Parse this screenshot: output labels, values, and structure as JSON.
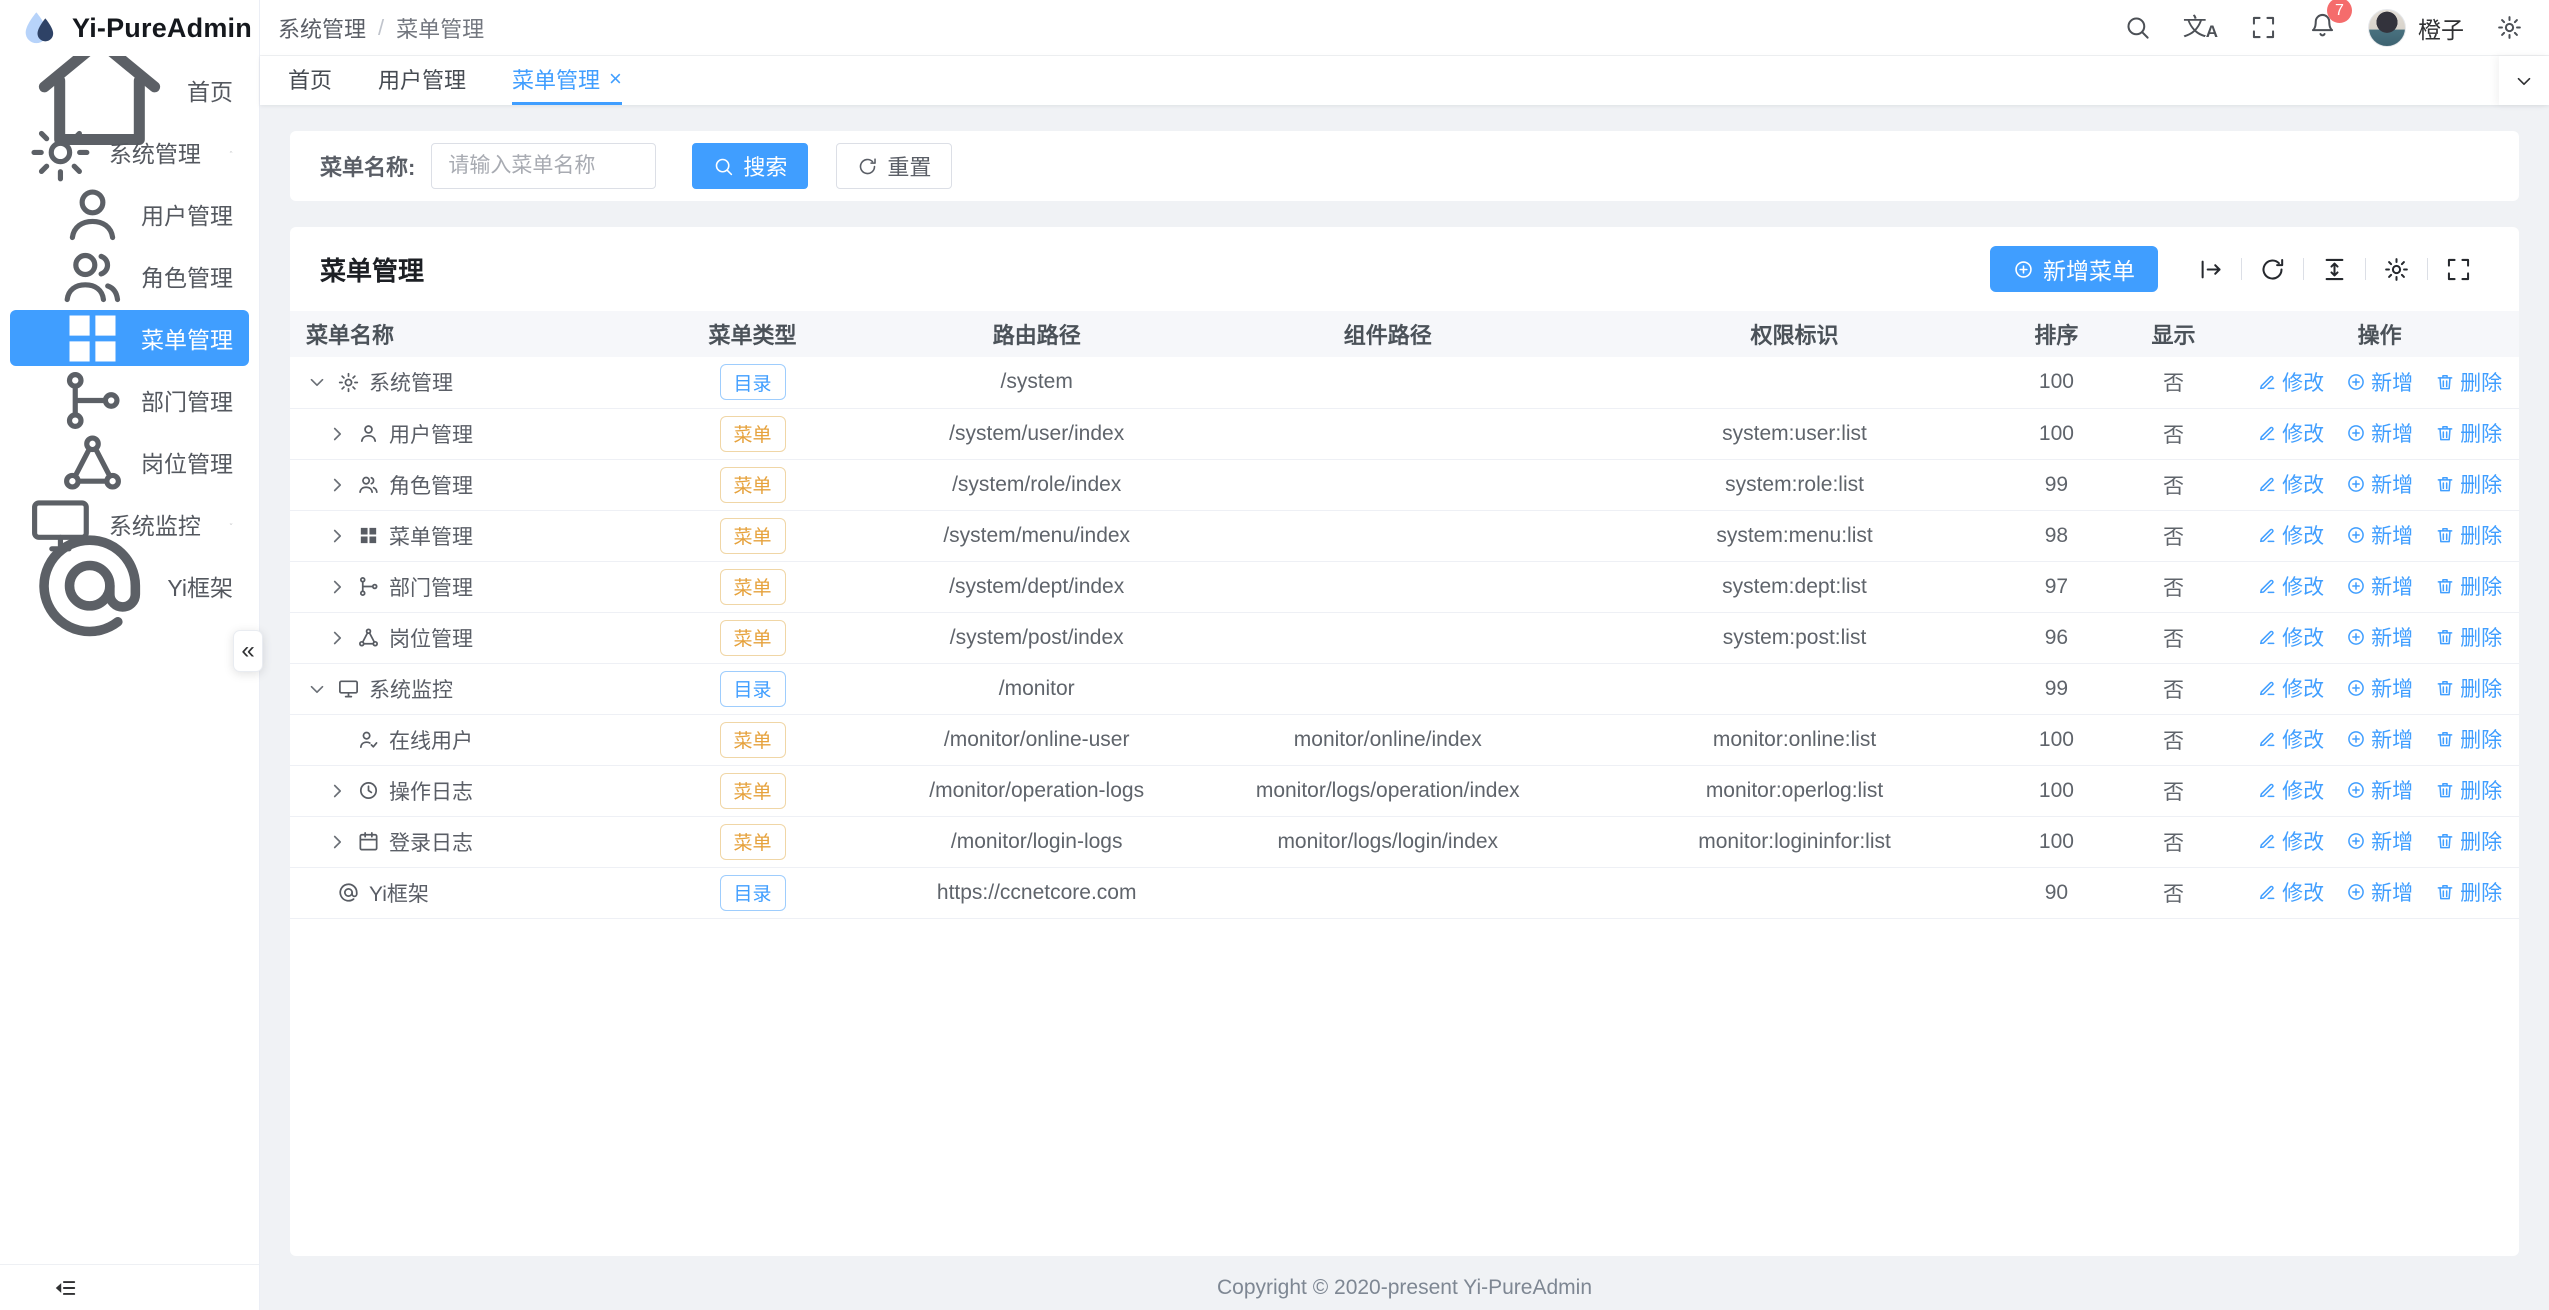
{
  "app": {
    "title": "Yi-PureAdmin"
  },
  "navbar": {
    "breadcrumb": [
      "系统管理",
      "菜单管理"
    ],
    "separator": "/",
    "icons": [
      "search",
      "translate",
      "fullscreen",
      "bell",
      "settings"
    ],
    "badge_count": "7",
    "username": "橙子"
  },
  "sidebar": {
    "collapse_glyph": "«",
    "items": [
      {
        "id": "home",
        "label": "首页",
        "icon": "home"
      },
      {
        "id": "system-management",
        "label": "系统管理",
        "icon": "gear",
        "arrow": "u"
      },
      {
        "id": "user-management",
        "label": "用户管理",
        "icon": "user",
        "child": true
      },
      {
        "id": "role-management",
        "label": "角色管理",
        "icon": "users",
        "child": true
      },
      {
        "id": "menu-management",
        "label": "菜单管理",
        "icon": "grid",
        "child": true,
        "active": true
      },
      {
        "id": "dept-management",
        "label": "部门管理",
        "icon": "dept",
        "child": true
      },
      {
        "id": "post-management",
        "label": "岗位管理",
        "icon": "share",
        "child": true
      },
      {
        "id": "system-monitor",
        "label": "系统监控",
        "icon": "monitor",
        "arrow": "d"
      },
      {
        "id": "yi-framework",
        "label": "Yi框架",
        "icon": "at"
      }
    ]
  },
  "tabs": {
    "items": [
      {
        "id": "home",
        "label": "首页"
      },
      {
        "id": "user-management",
        "label": "用户管理"
      },
      {
        "id": "menu-management",
        "label": "菜单管理",
        "active": true,
        "closable": true
      }
    ],
    "close_glyph": "×"
  },
  "search": {
    "label": "菜单名称:",
    "placeholder": "请输入菜单名称",
    "search_label": "搜索",
    "reset_label": "重置"
  },
  "card": {
    "title": "菜单管理",
    "add_label": "新增菜单",
    "tools": [
      "export",
      "refresh",
      "density",
      "column-setting",
      "fullscreen"
    ]
  },
  "table": {
    "columns": [
      "菜单名称",
      "菜单类型",
      "路由路径",
      "组件路径",
      "权限标识",
      "排序",
      "显示",
      "操作"
    ],
    "actions": {
      "edit": "修改",
      "add": "新增",
      "delete": "删除"
    },
    "rows": [
      {
        "name": "系统管理",
        "icon": "gear",
        "level": 0,
        "expand": "d",
        "type": "目录",
        "kind": "dir",
        "route": "/system",
        "component": "",
        "perm": "",
        "sort": "100",
        "show": "否"
      },
      {
        "name": "用户管理",
        "icon": "user",
        "level": 1,
        "expand": "r",
        "type": "菜单",
        "kind": "menu",
        "route": "/system/user/index",
        "component": "",
        "perm": "system:user:list",
        "sort": "100",
        "show": "否"
      },
      {
        "name": "角色管理",
        "icon": "users",
        "level": 1,
        "expand": "r",
        "type": "菜单",
        "kind": "menu",
        "route": "/system/role/index",
        "component": "",
        "perm": "system:role:list",
        "sort": "99",
        "show": "否"
      },
      {
        "name": "菜单管理",
        "icon": "grid",
        "level": 1,
        "expand": "r",
        "type": "菜单",
        "kind": "menu",
        "route": "/system/menu/index",
        "component": "",
        "perm": "system:menu:list",
        "sort": "98",
        "show": "否"
      },
      {
        "name": "部门管理",
        "icon": "dept",
        "level": 1,
        "expand": "r",
        "type": "菜单",
        "kind": "menu",
        "route": "/system/dept/index",
        "component": "",
        "perm": "system:dept:list",
        "sort": "97",
        "show": "否"
      },
      {
        "name": "岗位管理",
        "icon": "share",
        "level": 1,
        "expand": "r",
        "type": "菜单",
        "kind": "menu",
        "route": "/system/post/index",
        "component": "",
        "perm": "system:post:list",
        "sort": "96",
        "show": "否"
      },
      {
        "name": "系统监控",
        "icon": "monitor",
        "level": 0,
        "expand": "d",
        "type": "目录",
        "kind": "dir",
        "route": "/monitor",
        "component": "",
        "perm": "",
        "sort": "99",
        "show": "否"
      },
      {
        "name": "在线用户",
        "icon": "user-check",
        "level": 1,
        "expand": "",
        "type": "菜单",
        "kind": "menu",
        "route": "/monitor/online-user",
        "component": "monitor/online/index",
        "perm": "monitor:online:list",
        "sort": "100",
        "show": "否"
      },
      {
        "name": "操作日志",
        "icon": "clock",
        "level": 1,
        "expand": "r",
        "type": "菜单",
        "kind": "menu",
        "route": "/monitor/operation-logs",
        "component": "monitor/logs/operation/index",
        "perm": "monitor:operlog:list",
        "sort": "100",
        "show": "否"
      },
      {
        "name": "登录日志",
        "icon": "calendar",
        "level": 1,
        "expand": "r",
        "type": "菜单",
        "kind": "menu",
        "route": "/monitor/login-logs",
        "component": "monitor/logs/login/index",
        "perm": "monitor:logininfor:list",
        "sort": "100",
        "show": "否"
      },
      {
        "name": "Yi框架",
        "icon": "at",
        "level": 0,
        "expand": "",
        "type": "目录",
        "kind": "dir",
        "route": "https://ccnetcore.com",
        "component": "",
        "perm": "",
        "sort": "90",
        "show": "否"
      }
    ]
  },
  "footer": {
    "copyright": "Copyright © 2020-present Yi-PureAdmin"
  },
  "colors": {
    "primary": "#409eff",
    "warning": "#e6a23c",
    "danger": "#f56c6c",
    "content_bg": "#f0f2f5",
    "table_header_bg": "#f6f7fa"
  }
}
